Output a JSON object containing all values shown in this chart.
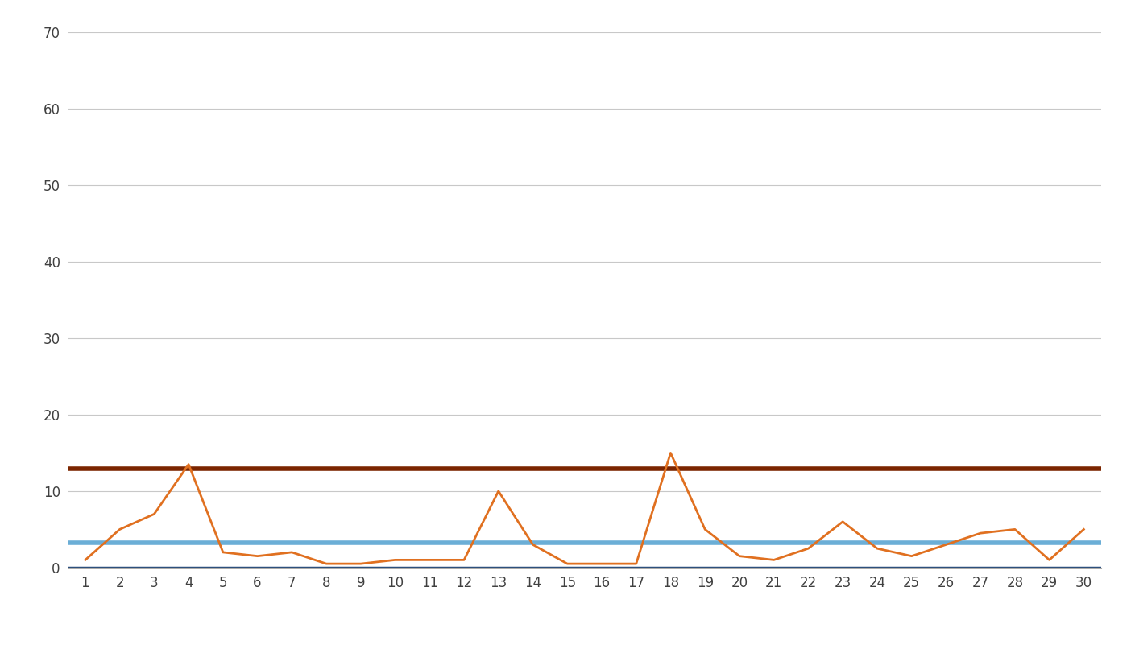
{
  "x": [
    1,
    2,
    3,
    4,
    5,
    6,
    7,
    8,
    9,
    10,
    11,
    12,
    13,
    14,
    15,
    16,
    17,
    18,
    19,
    20,
    21,
    22,
    23,
    24,
    25,
    26,
    27,
    28,
    29,
    30
  ],
  "cycle_times": [
    1.0,
    5.0,
    7.0,
    13.5,
    2.0,
    1.5,
    2.0,
    0.5,
    0.5,
    1.0,
    1.0,
    1.0,
    10.0,
    3.0,
    0.5,
    0.5,
    0.5,
    15.0,
    5.0,
    1.5,
    1.0,
    2.5,
    6.0,
    2.5,
    1.5,
    3.0,
    4.5,
    5.0,
    1.0,
    5.0
  ],
  "ucl": 12.9,
  "average": 3.2,
  "lcl": 0.0,
  "line_color_cycle": "#E07020",
  "line_color_ucl": "#7B2500",
  "line_color_avg": "#6BAED6",
  "line_color_lcl": "#2c4f7c",
  "background_color": "#ffffff",
  "grid_color": "#c8c8c8",
  "ylim": [
    0,
    70
  ],
  "yticks": [
    0,
    10,
    20,
    30,
    40,
    50,
    60,
    70
  ],
  "xlim_min": 0.5,
  "xlim_max": 30.5,
  "xticks": [
    1,
    2,
    3,
    4,
    5,
    6,
    7,
    8,
    9,
    10,
    11,
    12,
    13,
    14,
    15,
    16,
    17,
    18,
    19,
    20,
    21,
    22,
    23,
    24,
    25,
    26,
    27,
    28,
    29,
    30
  ]
}
